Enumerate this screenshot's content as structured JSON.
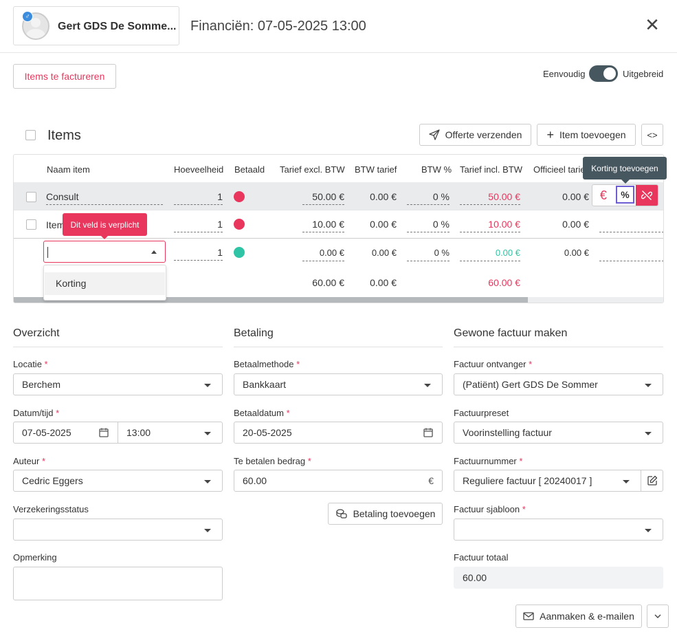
{
  "header": {
    "patient_name": "Gert GDS De Somme...",
    "gender_symbol": "♂",
    "title": "Financiën: 07-05-2025 13:00",
    "close_symbol": "✕"
  },
  "toolbar": {
    "items_to_invoice": "Items te factureren",
    "toggle_left": "Eenvoudig",
    "toggle_right": "Uitgebreid",
    "toggle_on": true
  },
  "items": {
    "title": "Items",
    "send_quote": "Offerte verzenden",
    "add_item": "Item toevoegen",
    "code_symbol": "<>",
    "columns": [
      "Naam item",
      "Hoeveelheid",
      "Betaald",
      "Tarief excl. BTW",
      "BTW tarief",
      "BTW %",
      "Tarief incl. BTW",
      "Officieel tarie"
    ],
    "rows": [
      {
        "name": "Consult",
        "qty": "1",
        "paid_color": "#e8365d",
        "excl": "50.00 €",
        "btw_tarief": "0.00 €",
        "btw_pct": "0 %",
        "incl": "50.00 €",
        "official": "0.00 €"
      },
      {
        "name": "Item",
        "qty": "1",
        "paid_color": "#e8365d",
        "excl": "10.00 €",
        "btw_tarief": "0.00 €",
        "btw_pct": "0 %",
        "incl": "10.00 €",
        "official": "0.00 €"
      },
      {
        "name": "",
        "qty": "1",
        "paid_color": "#2ec4a5",
        "excl": "0.00 €",
        "btw_tarief": "0.00 €",
        "btw_pct": "0 %",
        "incl": "0.00 €",
        "official": "0.00 €"
      }
    ],
    "totals": {
      "excl": "60.00 €",
      "btw_tarief": "0.00 €",
      "incl": "60.00 €"
    },
    "tooltip_discount": "Korting toevoegen",
    "tooltip_required": "Dit veld is verplicht",
    "dropdown_option": "Korting",
    "action_euro": "€",
    "action_percent": "%",
    "scroll_fraction": 0.79
  },
  "overview": {
    "title": "Overzicht",
    "location_label": "Locatie",
    "location_value": "Berchem",
    "datetime_label": "Datum/tijd",
    "date_value": "07-05-2025",
    "time_value": "13:00",
    "author_label": "Auteur",
    "author_value": "Cedric Eggers",
    "insurance_label": "Verzekeringsstatus",
    "insurance_value": "",
    "note_label": "Opmerking",
    "note_value": ""
  },
  "payment": {
    "title": "Betaling",
    "method_label": "Betaalmethode",
    "method_value": "Bankkaart",
    "date_label": "Betaaldatum",
    "date_value": "20-05-2025",
    "amount_label": "Te betalen bedrag",
    "amount_value": "60.00",
    "currency": "€",
    "add_payment": "Betaling toevoegen"
  },
  "invoice": {
    "title": "Gewone factuur maken",
    "recipient_label": "Factuur ontvanger",
    "recipient_value": "(Patiënt) Gert GDS De Sommer",
    "preset_label": "Factuurpreset",
    "preset_value": "Voorinstelling factuur",
    "number_label": "Factuurnummer",
    "number_value": "Reguliere factuur [ 20240017 ]",
    "template_label": "Factuur sjabloon",
    "template_value": "",
    "total_label": "Factuur totaal",
    "total_value": "60.00",
    "create_email": "Aanmaken & e-mailen"
  },
  "required_mark": "*"
}
